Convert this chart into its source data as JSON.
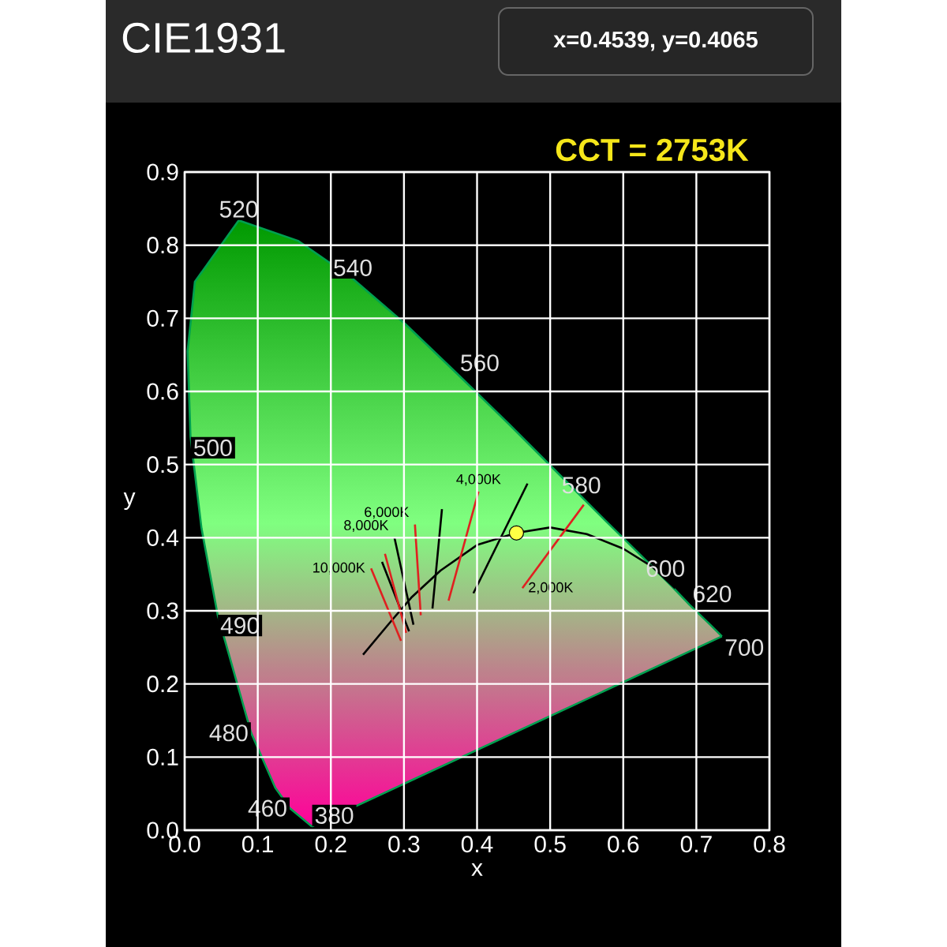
{
  "chart_data": {
    "type": "line",
    "title": "CIE1931",
    "xlabel": "x",
    "ylabel": "y",
    "xlim": [
      0,
      0.8
    ],
    "ylim": [
      0,
      0.9
    ],
    "xticks": [
      {
        "value": 0,
        "label": "0.0"
      },
      0.1,
      0.2,
      0.3,
      0.4,
      0.5,
      0.6,
      0.7,
      0.8
    ],
    "yticks": [
      {
        "value": 0,
        "label": "0.0"
      },
      0.1,
      0.2,
      0.3,
      0.4,
      0.5,
      0.6,
      0.7,
      0.8,
      0.9
    ],
    "grid": true,
    "series": [
      {
        "color": "#00a050",
        "x": [
          0.174,
          0.144,
          0.124,
          0.091,
          0.045,
          0.023,
          0.008,
          0.004,
          0.014,
          0.074,
          0.155,
          0.23,
          0.302,
          0.373,
          0.444,
          0.512,
          0.575,
          0.627,
          0.666,
          0.691,
          0.719,
          0.735
        ],
        "values": [
          0.005,
          0.03,
          0.058,
          0.133,
          0.295,
          0.413,
          0.538,
          0.655,
          0.75,
          0.834,
          0.806,
          0.754,
          0.692,
          0.624,
          0.555,
          0.487,
          0.424,
          0.373,
          0.334,
          0.308,
          0.281,
          0.265
        ]
      },
      {
        "color": "#000000",
        "x": [
          0.244,
          0.28,
          0.31,
          0.35,
          0.4,
          0.4539,
          0.5,
          0.55,
          0.6,
          0.64,
          0.671
        ],
        "values": [
          0.24,
          0.283,
          0.318,
          0.355,
          0.39,
          0.4065,
          0.414,
          0.405,
          0.385,
          0.36,
          0.331
        ]
      },
      {
        "color": "#e02020",
        "x": [
          0.255,
          0.296
        ],
        "values": [
          0.358,
          0.259
        ]
      },
      {
        "color": "#000000",
        "x": [
          0.27,
          0.307
        ],
        "values": [
          0.367,
          0.272
        ]
      },
      {
        "color": "#e02020",
        "x": [
          0.274,
          0.303
        ],
        "values": [
          0.378,
          0.27
        ]
      },
      {
        "color": "#000000",
        "x": [
          0.287,
          0.313
        ],
        "values": [
          0.4,
          0.281
        ]
      },
      {
        "color": "#e02020",
        "x": [
          0.315,
          0.323
        ],
        "values": [
          0.418,
          0.294
        ]
      },
      {
        "color": "#000000",
        "x": [
          0.352,
          0.339
        ],
        "values": [
          0.439,
          0.303
        ]
      },
      {
        "color": "#e02020",
        "x": [
          0.402,
          0.361
        ],
        "values": [
          0.463,
          0.314
        ]
      },
      {
        "color": "#000000",
        "x": [
          0.469,
          0.395
        ],
        "values": [
          0.474,
          0.324
        ]
      },
      {
        "color": "#e02020",
        "x": [
          0.546,
          0.462
        ],
        "values": [
          0.445,
          0.331
        ]
      },
      {
        "type": "scatter",
        "color": "#ffff44",
        "x": [
          0.4539
        ],
        "values": [
          0.4065
        ]
      },
      {
        "color": "#00a050",
        "x": [
          0.735,
          0.174
        ],
        "values": [
          0.265,
          0.005
        ]
      }
    ],
    "annotations": [
      "x=0.4539, y=0.4065",
      "CCT = 2753K",
      {
        "text": "10,000K",
        "x": 0.255,
        "y": 0.358
      },
      {
        "text": "8,000K",
        "x": 0.287,
        "y": 0.4
      },
      {
        "text": "6,000K",
        "x": 0.315,
        "y": 0.418
      },
      {
        "text": "4,000K",
        "x": 0.402,
        "y": 0.463
      },
      {
        "text": "2,000K",
        "x": 0.462,
        "y": 0.331
      },
      {
        "text": "380",
        "x": 0.174,
        "y": 0.005
      },
      {
        "text": "460",
        "x": 0.144,
        "y": 0.03
      },
      {
        "text": "480",
        "x": 0.091,
        "y": 0.133
      },
      {
        "text": "490",
        "x": 0.045,
        "y": 0.295
      },
      {
        "text": "500",
        "x": 0.008,
        "y": 0.538
      },
      {
        "text": "520",
        "x": 0.074,
        "y": 0.834
      },
      {
        "text": "540",
        "x": 0.23,
        "y": 0.754
      },
      {
        "text": "560",
        "x": 0.373,
        "y": 0.624
      },
      {
        "text": "580",
        "x": 0.512,
        "y": 0.487
      },
      {
        "text": "600",
        "x": 0.627,
        "y": 0.373
      },
      {
        "text": "620",
        "x": 0.691,
        "y": 0.308
      },
      {
        "text": "700",
        "x": 0.735,
        "y": 0.265
      }
    ]
  }
}
